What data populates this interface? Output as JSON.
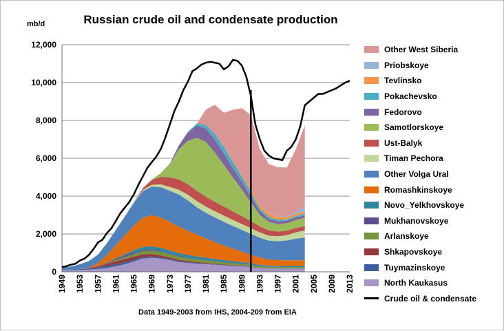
{
  "chart_data": {
    "type": "area",
    "title": "Russian crude oil and condensate production",
    "ylabel": "mb/d",
    "note": "Data 1949-2003  from IHS, 2004-209 from EIA",
    "ylim": [
      0,
      12000
    ],
    "y_ticks": [
      "0",
      "2,000",
      "4,000",
      "6,000",
      "8,000",
      "10,000",
      "12,000"
    ],
    "y_tick_values": [
      0,
      2000,
      4000,
      6000,
      8000,
      10000,
      12000
    ],
    "xlim": [
      1949,
      2013
    ],
    "x_ticks": [
      "1949",
      "1953",
      "1957",
      "1961",
      "1965",
      "1969",
      "1973",
      "1977",
      "1981",
      "1985",
      "1989",
      "1993",
      "1997",
      "2001",
      "2005",
      "2009",
      "2013"
    ],
    "x_tick_values": [
      1949,
      1953,
      1957,
      1961,
      1965,
      1969,
      1973,
      1977,
      1981,
      1985,
      1989,
      1993,
      1997,
      2001,
      2005,
      2009,
      2013
    ],
    "grid": "horizontal",
    "legend_position": "right",
    "divider_year": 1991,
    "x": [
      1949,
      1951,
      1953,
      1955,
      1957,
      1959,
      1961,
      1963,
      1965,
      1967,
      1969,
      1971,
      1973,
      1975,
      1977,
      1979,
      1981,
      1983,
      1985,
      1987,
      1989,
      1991,
      1993,
      1995,
      1997,
      1999,
      2001,
      2003
    ],
    "series": [
      {
        "name": "North Kaukasus",
        "color": "#a596c6",
        "values": [
          80,
          90,
          100,
          120,
          150,
          200,
          300,
          400,
          550,
          700,
          740,
          700,
          620,
          520,
          470,
          430,
          400,
          370,
          340,
          310,
          280,
          250,
          200,
          180,
          170,
          160,
          160,
          160
        ]
      },
      {
        "name": "Tuymazinskoye",
        "color": "#3a5f9c",
        "values": [
          20,
          30,
          40,
          60,
          90,
          100,
          100,
          100,
          90,
          80,
          70,
          60,
          50,
          45,
          40,
          35,
          30,
          28,
          25,
          22,
          20,
          18,
          15,
          12,
          10,
          10,
          10,
          10
        ]
      },
      {
        "name": "Shkapovskoye",
        "color": "#943b3a",
        "values": [
          0,
          0,
          0,
          20,
          60,
          120,
          160,
          180,
          170,
          150,
          130,
          110,
          90,
          70,
          60,
          50,
          40,
          30,
          25,
          20,
          18,
          15,
          12,
          10,
          10,
          10,
          10,
          10
        ]
      },
      {
        "name": "Arlanskoye",
        "color": "#77933c",
        "values": [
          0,
          0,
          0,
          0,
          0,
          20,
          60,
          100,
          140,
          170,
          180,
          180,
          170,
          160,
          150,
          140,
          130,
          120,
          110,
          100,
          90,
          80,
          70,
          60,
          60,
          60,
          60,
          60
        ]
      },
      {
        "name": "Mukhanovskoye",
        "color": "#5f4b8b",
        "values": [
          0,
          0,
          0,
          0,
          10,
          40,
          60,
          70,
          70,
          60,
          50,
          40,
          35,
          30,
          25,
          20,
          18,
          15,
          12,
          10,
          10,
          10,
          8,
          8,
          8,
          8,
          8,
          8
        ]
      },
      {
        "name": "Novo_Yelkhovskoye",
        "color": "#31859c",
        "values": [
          0,
          0,
          0,
          0,
          0,
          10,
          40,
          80,
          130,
          160,
          180,
          180,
          170,
          160,
          150,
          140,
          130,
          120,
          110,
          100,
          90,
          80,
          70,
          60,
          60,
          60,
          60,
          60
        ]
      },
      {
        "name": "Romashkinskoye",
        "color": "#e46c0a",
        "values": [
          0,
          0,
          0,
          30,
          150,
          400,
          700,
          1000,
          1300,
          1550,
          1650,
          1600,
          1500,
          1400,
          1280,
          1150,
          1020,
          890,
          770,
          660,
          560,
          450,
          380,
          320,
          300,
          300,
          300,
          300
        ]
      },
      {
        "name": "Other Volga Ural",
        "color": "#4f81bd",
        "values": [
          120,
          160,
          260,
          340,
          450,
          620,
          800,
          1000,
          1200,
          1400,
          1500,
          1600,
          1650,
          1700,
          1600,
          1450,
          1350,
          1300,
          1250,
          1200,
          1150,
          1100,
          1050,
          1000,
          1000,
          1050,
          1150,
          1200
        ]
      },
      {
        "name": "Timan Pechora",
        "color": "#c3d69b",
        "values": [
          10,
          10,
          10,
          10,
          10,
          10,
          10,
          20,
          30,
          60,
          100,
          150,
          200,
          250,
          300,
          320,
          330,
          330,
          330,
          320,
          310,
          300,
          280,
          260,
          260,
          280,
          330,
          380
        ]
      },
      {
        "name": "Ust-Balyk",
        "color": "#c0504d",
        "values": [
          0,
          0,
          0,
          0,
          0,
          0,
          0,
          0,
          10,
          100,
          250,
          400,
          500,
          550,
          550,
          550,
          520,
          500,
          480,
          450,
          420,
          380,
          320,
          280,
          250,
          230,
          230,
          230
        ]
      },
      {
        "name": "Samotlorskoye",
        "color": "#9bbb59",
        "values": [
          0,
          0,
          0,
          0,
          0,
          0,
          0,
          0,
          0,
          0,
          30,
          200,
          700,
          1600,
          2300,
          2800,
          2900,
          2600,
          2200,
          1800,
          1400,
          1000,
          600,
          450,
          400,
          400,
          420,
          450
        ]
      },
      {
        "name": "Fedorovo",
        "color": "#8064a2",
        "values": [
          0,
          0,
          0,
          0,
          0,
          0,
          0,
          0,
          0,
          0,
          0,
          0,
          30,
          200,
          450,
          650,
          700,
          680,
          600,
          500,
          400,
          300,
          200,
          150,
          130,
          130,
          130,
          130
        ]
      },
      {
        "name": "Pokachevsko",
        "color": "#4bacc6",
        "values": [
          0,
          0,
          0,
          0,
          0,
          0,
          0,
          0,
          0,
          0,
          0,
          0,
          0,
          0,
          20,
          100,
          200,
          300,
          350,
          330,
          300,
          250,
          150,
          120,
          100,
          80,
          80,
          80
        ]
      },
      {
        "name": "Tevlinsko",
        "color": "#f79646",
        "values": [
          0,
          0,
          0,
          0,
          0,
          0,
          0,
          0,
          0,
          0,
          0,
          0,
          0,
          0,
          0,
          0,
          0,
          0,
          10,
          40,
          100,
          150,
          170,
          170,
          150,
          130,
          120,
          120
        ]
      },
      {
        "name": "Priobskoye",
        "color": "#95b3d7",
        "values": [
          0,
          0,
          0,
          0,
          0,
          0,
          0,
          0,
          0,
          0,
          0,
          0,
          0,
          0,
          0,
          0,
          0,
          0,
          0,
          0,
          0,
          0,
          10,
          15,
          20,
          50,
          100,
          250
        ]
      },
      {
        "name": "Other West Siberia",
        "color": "#d99694",
        "values": [
          0,
          0,
          0,
          0,
          0,
          0,
          0,
          0,
          0,
          0,
          0,
          0,
          0,
          0,
          0,
          0,
          800,
          1550,
          1800,
          2700,
          3500,
          3900,
          2950,
          2600,
          2600,
          2550,
          3300,
          4300
        ]
      }
    ],
    "line": {
      "name": "Crude oil & condensate",
      "color": "#000000",
      "x": [
        1949,
        1950,
        1951,
        1952,
        1953,
        1954,
        1955,
        1956,
        1957,
        1958,
        1959,
        1960,
        1961,
        1962,
        1963,
        1964,
        1965,
        1966,
        1967,
        1968,
        1969,
        1970,
        1971,
        1972,
        1973,
        1974,
        1975,
        1976,
        1977,
        1978,
        1979,
        1980,
        1981,
        1982,
        1983,
        1984,
        1985,
        1986,
        1987,
        1988,
        1989,
        1990,
        1991,
        1992,
        1993,
        1994,
        1995,
        1996,
        1997,
        1998,
        1999,
        2000,
        2001,
        2002,
        2003,
        2004,
        2005,
        2006,
        2007,
        2008,
        2009,
        2010,
        2011,
        2012,
        2013
      ],
      "values": [
        250,
        300,
        380,
        430,
        600,
        700,
        900,
        1200,
        1550,
        1700,
        2050,
        2300,
        2700,
        3100,
        3400,
        3700,
        4100,
        4600,
        5050,
        5500,
        5800,
        6100,
        6500,
        7100,
        7800,
        8500,
        9000,
        9600,
        10050,
        10600,
        10750,
        10950,
        11050,
        11100,
        11050,
        11000,
        10700,
        10850,
        11200,
        11150,
        10900,
        10300,
        9300,
        7800,
        7000,
        6400,
        6150,
        6000,
        5950,
        5900,
        6400,
        6600,
        7000,
        7700,
        8800,
        9000,
        9200,
        9400,
        9400,
        9500,
        9600,
        9700,
        9850,
        10000,
        10100
      ]
    }
  }
}
